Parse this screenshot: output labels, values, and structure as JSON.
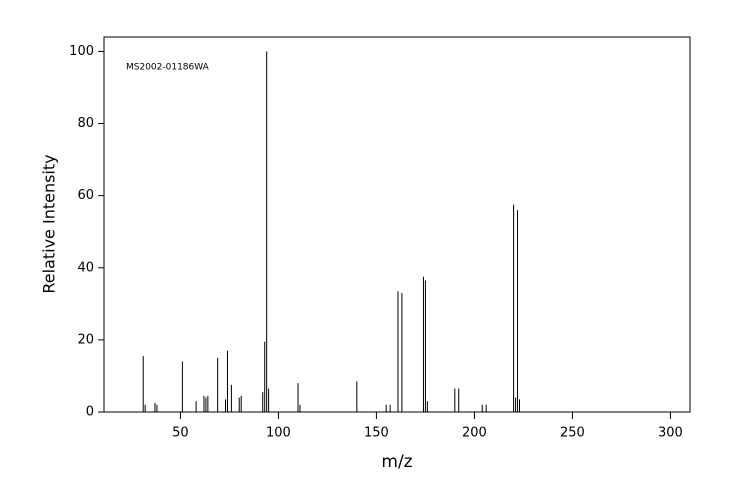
{
  "chart_data": {
    "type": "stem",
    "annotation": "MS2002-01186WA",
    "x_label": "m/z",
    "y_label": "Relative Intensity",
    "x": [
      31,
      32,
      37,
      38,
      51,
      58,
      62,
      63,
      64,
      69,
      73,
      74,
      76,
      80,
      81,
      92,
      93,
      94,
      95,
      110,
      111,
      140,
      155,
      157,
      161,
      163,
      174,
      175,
      176,
      190,
      192,
      204,
      206,
      220,
      221,
      222,
      223
    ],
    "values": [
      15.5,
      2,
      2.5,
      2,
      14,
      3,
      4.5,
      4,
      4.5,
      15,
      3.5,
      17,
      7.5,
      4,
      4.5,
      5.5,
      19.5,
      100,
      6.5,
      8,
      2,
      8.5,
      2,
      2,
      33.5,
      33,
      37.5,
      36.5,
      3,
      6.5,
      6.5,
      2,
      2,
      57.5,
      4,
      56,
      3.5
    ],
    "color": "#000000",
    "xlim": [
      11,
      310
    ],
    "ylim": [
      0,
      104
    ],
    "xticks": [
      50,
      100,
      150,
      200,
      250,
      300
    ],
    "yticks": [
      0,
      20,
      40,
      60,
      80,
      100
    ]
  }
}
